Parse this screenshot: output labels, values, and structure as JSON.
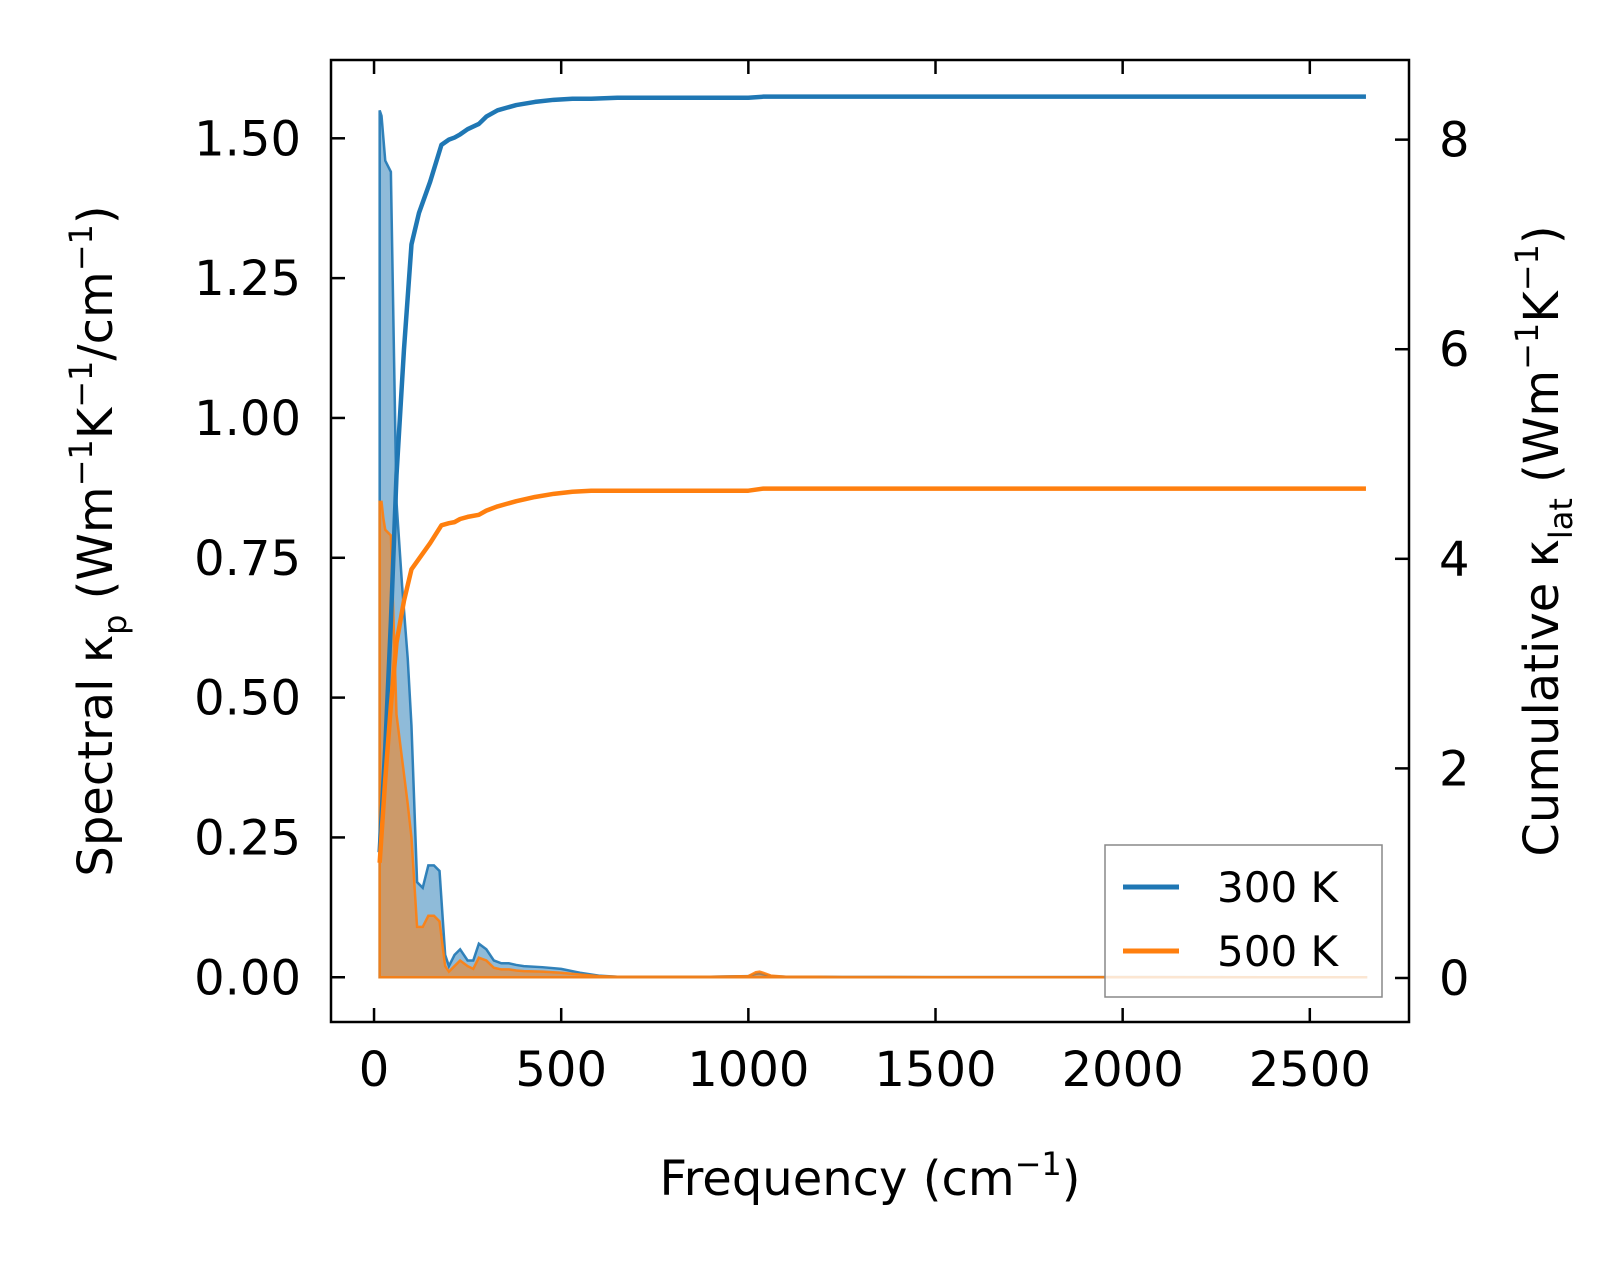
{
  "chart_data": {
    "type": "line",
    "xlabel": "Frequency (cm⁻¹)",
    "xlabel_parts": {
      "base": "Frequency (cm",
      "sup": "−1",
      "close": ")"
    },
    "ylabel_left": "Spectral κₚ (Wm⁻¹K⁻¹/cm⁻¹)",
    "ylabel_left_parts": {
      "base": "Spectral κ",
      "sub": "p",
      "rest1": " (Wm",
      "sup1": "−1",
      "rest2": "K",
      "sup2": "−1",
      "rest3": "/cm",
      "sup3": "−1",
      "close": ")"
    },
    "ylabel_right": "Cumulative κₗₐₜ (Wm⁻¹K⁻¹)",
    "ylabel_right_parts": {
      "base": "Cumulative κ",
      "sub": "lat",
      "rest1": " (Wm",
      "sup1": "−1",
      "rest2": "K",
      "sup2": "−1",
      "close": ")"
    },
    "xlim": [
      -115,
      2765
    ],
    "ylim_left": [
      -0.08,
      1.64
    ],
    "ylim_right": [
      -0.42,
      8.76
    ],
    "xticks": [
      0,
      500,
      1000,
      1500,
      2000,
      2500
    ],
    "xtick_labels": [
      "0",
      "500",
      "1000",
      "1500",
      "2000",
      "2500"
    ],
    "yticks_left": [
      0.0,
      0.25,
      0.5,
      0.75,
      1.0,
      1.25,
      1.5
    ],
    "ytick_labels_left": [
      "0.00",
      "0.25",
      "0.50",
      "0.75",
      "1.00",
      "1.25",
      "1.50"
    ],
    "yticks_right": [
      0,
      2,
      4,
      6,
      8
    ],
    "ytick_labels_right": [
      "0",
      "2",
      "4",
      "6",
      "8"
    ],
    "legend_position": "lower-right",
    "series": [
      {
        "name": "300 K",
        "color": "#1f77b4",
        "fill_color": "#1f77b4",
        "spectral": {
          "x": [
            15,
            20,
            25,
            30,
            45,
            60,
            75,
            90,
            100,
            115,
            130,
            145,
            160,
            175,
            190,
            200,
            215,
            230,
            250,
            265,
            280,
            300,
            320,
            340,
            360,
            380,
            400,
            450,
            500,
            550,
            600,
            650,
            700,
            800,
            900,
            1000,
            1020,
            1030,
            1040,
            1060,
            1100,
            1180,
            1250,
            1500,
            2000,
            2500,
            2650
          ],
          "y": [
            1.55,
            1.54,
            1.5,
            1.46,
            1.44,
            0.85,
            0.7,
            0.57,
            0.45,
            0.17,
            0.16,
            0.2,
            0.2,
            0.19,
            0.04,
            0.02,
            0.04,
            0.05,
            0.03,
            0.03,
            0.06,
            0.05,
            0.03,
            0.025,
            0.025,
            0.022,
            0.02,
            0.018,
            0.015,
            0.008,
            0.003,
            0.001,
            0.001,
            0.001,
            0.001,
            0.002,
            0.006,
            0.007,
            0.005,
            0.002,
            0.001,
            0.001,
            0.0005,
            0.0003,
            0.0002,
            0.0001,
            0.0001
          ]
        },
        "cumulative": {
          "x": [
            15,
            30,
            45,
            60,
            80,
            100,
            120,
            150,
            180,
            200,
            215,
            230,
            250,
            280,
            300,
            330,
            380,
            430,
            480,
            530,
            580,
            650,
            800,
            1000,
            1040,
            1100,
            1200,
            1500,
            2000,
            2500,
            2650
          ],
          "y": [
            1.2,
            2.2,
            3.4,
            4.8,
            6.0,
            7.0,
            7.3,
            7.6,
            7.95,
            8.0,
            8.02,
            8.05,
            8.1,
            8.15,
            8.22,
            8.28,
            8.33,
            8.36,
            8.38,
            8.39,
            8.39,
            8.4,
            8.4,
            8.4,
            8.41,
            8.41,
            8.41,
            8.41,
            8.41,
            8.41,
            8.41
          ]
        }
      },
      {
        "name": "500 K",
        "color": "#ff7f0e",
        "fill_color": "#ff7f0e",
        "spectral": {
          "x": [
            15,
            20,
            25,
            30,
            45,
            60,
            75,
            90,
            100,
            115,
            130,
            145,
            160,
            175,
            190,
            200,
            215,
            230,
            250,
            265,
            280,
            300,
            320,
            340,
            360,
            380,
            400,
            450,
            500,
            550,
            600,
            650,
            700,
            800,
            900,
            1000,
            1020,
            1030,
            1040,
            1060,
            1100,
            1180,
            1250,
            1500,
            2000,
            2500,
            2650
          ],
          "y": [
            0.85,
            0.85,
            0.82,
            0.8,
            0.79,
            0.47,
            0.39,
            0.31,
            0.25,
            0.09,
            0.09,
            0.11,
            0.11,
            0.1,
            0.02,
            0.01,
            0.02,
            0.03,
            0.02,
            0.015,
            0.035,
            0.03,
            0.017,
            0.014,
            0.014,
            0.012,
            0.011,
            0.01,
            0.008,
            0.005,
            0.002,
            0.001,
            0.001,
            0.001,
            0.001,
            0.002,
            0.009,
            0.01,
            0.008,
            0.003,
            0.001,
            0.001,
            0.0005,
            0.0003,
            0.0002,
            0.0001,
            0.0001
          ]
        },
        "cumulative": {
          "x": [
            15,
            30,
            45,
            60,
            80,
            100,
            120,
            150,
            180,
            200,
            215,
            230,
            250,
            280,
            300,
            330,
            380,
            430,
            480,
            530,
            580,
            650,
            800,
            1000,
            1040,
            1100,
            1200,
            1500,
            2000,
            2500,
            2650
          ],
          "y": [
            1.1,
            1.9,
            2.6,
            3.2,
            3.6,
            3.9,
            4.0,
            4.15,
            4.32,
            4.34,
            4.35,
            4.38,
            4.4,
            4.42,
            4.46,
            4.5,
            4.55,
            4.59,
            4.62,
            4.64,
            4.65,
            4.65,
            4.65,
            4.65,
            4.67,
            4.67,
            4.67,
            4.67,
            4.67,
            4.67,
            4.67
          ]
        }
      }
    ]
  }
}
